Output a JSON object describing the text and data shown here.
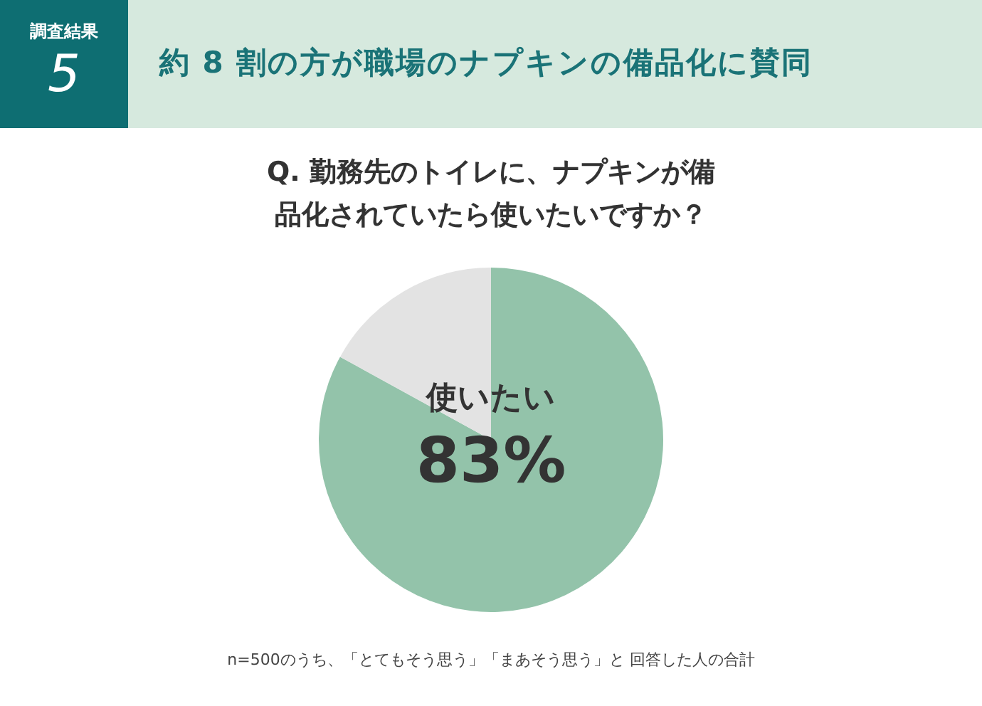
{
  "chart_data": {
    "type": "pie",
    "title": "約 8 割の方が職場のナプキンの備品化に賛同",
    "subtitle": "Q. 勤務先のトイレに、ナプキンが備品化されていたら使いたいですか？",
    "categories": [
      "使いたい",
      null
    ],
    "values": [
      83,
      17
    ],
    "colors": [
      "#93c3aa",
      "#e3e3e3"
    ],
    "value_labels": [
      "83%",
      null
    ],
    "legend": false,
    "annotations": [
      "調査結果",
      "5",
      "n=500のうち、「とてもそう思う」「まあそう思う」と 回答した人の合計"
    ]
  }
}
